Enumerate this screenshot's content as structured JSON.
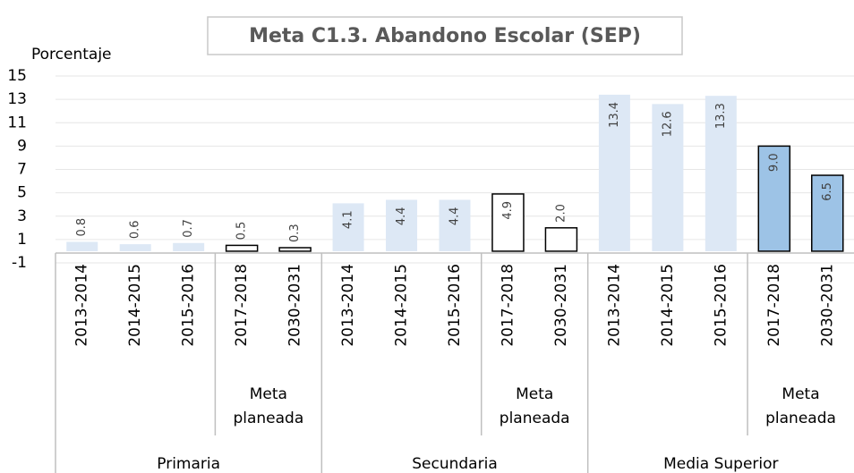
{
  "chart_data": {
    "type": "bar",
    "title": "Meta C1.3. Abandono Escolar (SEP)",
    "y_label": "Porcentaje",
    "ylim": [
      -1,
      15
    ],
    "yticks": [
      -1,
      1,
      3,
      5,
      7,
      9,
      11,
      13,
      15
    ],
    "grid": true,
    "subgroup_label": "Meta planeada",
    "groups": [
      {
        "name": "Primaria",
        "categories": [
          "2013-2014",
          "2014-2015",
          "2015-2016",
          "2017-2018",
          "2030-2031"
        ],
        "values": [
          0.8,
          0.6,
          0.7,
          0.5,
          0.3
        ],
        "value_labels": [
          "0.8",
          "0.6",
          "0.7",
          "0.5",
          "0.3"
        ],
        "colors": [
          "#dde8f5",
          "#dde8f5",
          "#dde8f5",
          "#ffffff",
          "#ffffff"
        ],
        "outlined": [
          false,
          false,
          false,
          true,
          true
        ]
      },
      {
        "name": "Secundaria",
        "categories": [
          "2013-2014",
          "2014-2015",
          "2015-2016",
          "2017-2018",
          "2030-2031"
        ],
        "values": [
          4.1,
          4.4,
          4.4,
          4.9,
          2.0
        ],
        "value_labels": [
          "4.1",
          "4.4",
          "4.4",
          "4.9",
          "2.0"
        ],
        "colors": [
          "#dde8f5",
          "#dde8f5",
          "#dde8f5",
          "#ffffff",
          "#ffffff"
        ],
        "outlined": [
          false,
          false,
          false,
          true,
          true
        ]
      },
      {
        "name": "Media Superior",
        "categories": [
          "2013-2014",
          "2014-2015",
          "2015-2016",
          "2017-2018",
          "2030-2031"
        ],
        "values": [
          13.4,
          12.6,
          13.3,
          9.0,
          6.5
        ],
        "value_labels": [
          "13.4",
          "12.6",
          "13.3",
          "9.0",
          "6.5"
        ],
        "colors": [
          "#dde8f5",
          "#dde8f5",
          "#dde8f5",
          "#9dc3e6",
          "#9dc3e6"
        ],
        "outlined": [
          false,
          false,
          false,
          true,
          true
        ]
      }
    ]
  }
}
